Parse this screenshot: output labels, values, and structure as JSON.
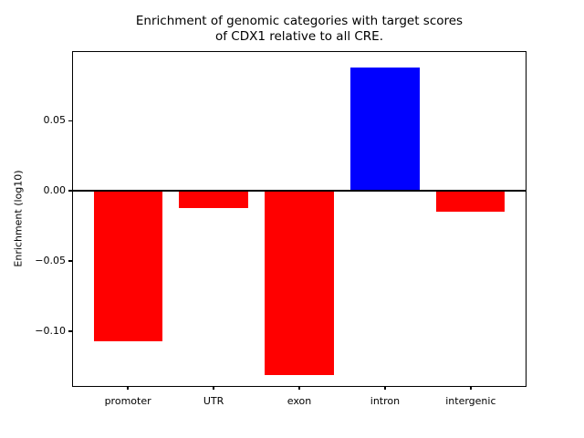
{
  "figure": {
    "title_lines": [
      "Enrichment of genomic categories with target scores",
      "of CDX1 relative to all CRE."
    ],
    "ylabel": "Enrichment (log10)",
    "background_color": "#ffffff"
  },
  "chart_data": {
    "type": "bar",
    "title": "Enrichment of genomic categories with target scores\nof CDX1 relative to all CRE.",
    "xlabel": "",
    "ylabel": "Enrichment (log10)",
    "categories": [
      "promoter",
      "UTR",
      "exon",
      "intron",
      "intergenic"
    ],
    "values": [
      -0.107,
      -0.012,
      -0.131,
      0.088,
      -0.015
    ],
    "bar_colors": [
      "#ff0000",
      "#ff0000",
      "#ff0000",
      "#0000ff",
      "#ff0000"
    ],
    "positive_color": "#0000ff",
    "negative_color": "#ff0000",
    "bar_width": 0.8,
    "xlim": [
      -0.64,
      4.64
    ],
    "ylim": [
      -0.139,
      0.099
    ],
    "yticks": [
      {
        "value": 0.05,
        "label": "0.05"
      },
      {
        "value": 0.0,
        "label": "0.00"
      },
      {
        "value": -0.05,
        "label": "−0.05"
      },
      {
        "value": -0.1,
        "label": "−0.10"
      }
    ],
    "zero_line": true,
    "grid": false,
    "legend": null
  }
}
